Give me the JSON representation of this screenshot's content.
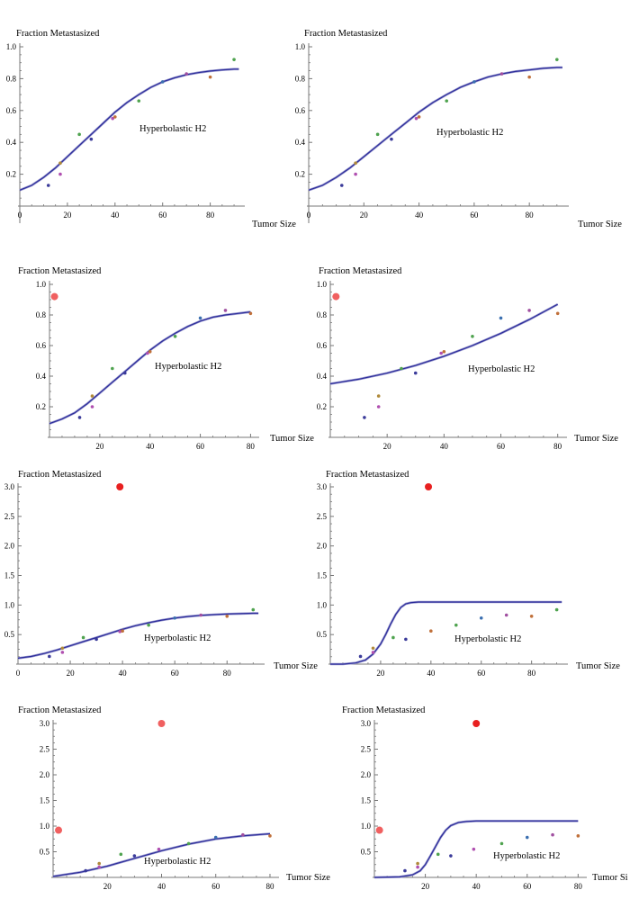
{
  "chart_data": [
    {
      "type": "line",
      "ylabel": "Fraction  Metastasized",
      "xlabel": "Tumor Size",
      "annotation": "Hyperbolastic H2",
      "xlim": [
        0,
        93
      ],
      "ylim": [
        0.0,
        1.0
      ],
      "xticks": [
        0,
        20,
        40,
        60,
        80
      ],
      "yticks": [
        0.2,
        0.4,
        0.6,
        0.8,
        1.0
      ],
      "yticks_text": [
        "0.2",
        "0.4",
        "0.6",
        "0.8",
        "1.0"
      ],
      "fit": {
        "x": [
          0,
          5,
          10,
          15,
          20,
          25,
          30,
          35,
          40,
          45,
          50,
          55,
          60,
          65,
          70,
          75,
          80,
          85,
          90,
          92
        ],
        "y": [
          0.1,
          0.13,
          0.18,
          0.24,
          0.31,
          0.38,
          0.45,
          0.52,
          0.59,
          0.65,
          0.7,
          0.745,
          0.78,
          0.805,
          0.825,
          0.838,
          0.848,
          0.855,
          0.86,
          0.86
        ]
      },
      "points": [
        {
          "x": 12,
          "y": 0.13,
          "color": "#3b3b9a"
        },
        {
          "x": 17,
          "y": 0.2,
          "color": "#b04fb0"
        },
        {
          "x": 17,
          "y": 0.27,
          "color": "#b08a3a"
        },
        {
          "x": 25,
          "y": 0.45,
          "color": "#4fa34f"
        },
        {
          "x": 30,
          "y": 0.42,
          "color": "#3b3b9a"
        },
        {
          "x": 39,
          "y": 0.55,
          "color": "#b04fb0"
        },
        {
          "x": 40,
          "y": 0.56,
          "color": "#c0703a"
        },
        {
          "x": 50,
          "y": 0.66,
          "color": "#4fa34f"
        },
        {
          "x": 60,
          "y": 0.78,
          "color": "#3b6fb0"
        },
        {
          "x": 70,
          "y": 0.83,
          "color": "#a04fa0"
        },
        {
          "x": 80,
          "y": 0.81,
          "color": "#c0703a"
        },
        {
          "x": 90,
          "y": 0.92,
          "color": "#4fa34f"
        }
      ]
    },
    {
      "type": "line",
      "ylabel": "Fraction  Metastasized",
      "xlabel": "Tumor Size",
      "annotation": "Hyperbolastic H2",
      "xlim": [
        0,
        93
      ],
      "ylim": [
        0.0,
        1.0
      ],
      "xticks": [
        0,
        20,
        40,
        60,
        80
      ],
      "yticks": [
        0.2,
        0.4,
        0.6,
        0.8,
        1.0
      ],
      "yticks_text": [
        "0.2",
        "0.4",
        "0.6",
        "0.8",
        "1.0"
      ],
      "fit": {
        "x": [
          0,
          5,
          10,
          15,
          20,
          25,
          30,
          35,
          40,
          45,
          50,
          55,
          60,
          65,
          70,
          75,
          80,
          85,
          90,
          92
        ],
        "y": [
          0.1,
          0.13,
          0.18,
          0.24,
          0.31,
          0.38,
          0.45,
          0.52,
          0.59,
          0.65,
          0.7,
          0.745,
          0.78,
          0.81,
          0.83,
          0.845,
          0.855,
          0.865,
          0.87,
          0.87
        ]
      },
      "points": [
        {
          "x": 12,
          "y": 0.13,
          "color": "#3b3b9a"
        },
        {
          "x": 17,
          "y": 0.2,
          "color": "#b04fb0"
        },
        {
          "x": 17,
          "y": 0.27,
          "color": "#b08a3a"
        },
        {
          "x": 25,
          "y": 0.45,
          "color": "#4fa34f"
        },
        {
          "x": 30,
          "y": 0.42,
          "color": "#3b3b9a"
        },
        {
          "x": 39,
          "y": 0.55,
          "color": "#b04fb0"
        },
        {
          "x": 40,
          "y": 0.56,
          "color": "#c0703a"
        },
        {
          "x": 50,
          "y": 0.66,
          "color": "#4fa34f"
        },
        {
          "x": 60,
          "y": 0.78,
          "color": "#3b6fb0"
        },
        {
          "x": 70,
          "y": 0.83,
          "color": "#a04fa0"
        },
        {
          "x": 80,
          "y": 0.81,
          "color": "#c0703a"
        },
        {
          "x": 90,
          "y": 0.92,
          "color": "#4fa34f"
        }
      ]
    },
    {
      "type": "line",
      "ylabel": "Fraction  Metastasized",
      "xlabel": "Tumor Size",
      "annotation": "Hyperbolastic H2",
      "xlim": [
        0,
        82
      ],
      "ylim": [
        0.0,
        1.0
      ],
      "xticks": [
        20,
        40,
        60,
        80
      ],
      "yticks": [
        0.2,
        0.4,
        0.6,
        0.8,
        1.0
      ],
      "yticks_text": [
        "0.2",
        "0.4",
        "0.6",
        "0.8",
        "1.0"
      ],
      "fit": {
        "x": [
          0,
          5,
          10,
          15,
          20,
          25,
          30,
          35,
          40,
          45,
          50,
          55,
          60,
          65,
          70,
          75,
          80
        ],
        "y": [
          0.09,
          0.12,
          0.16,
          0.22,
          0.29,
          0.36,
          0.43,
          0.5,
          0.57,
          0.63,
          0.68,
          0.725,
          0.76,
          0.785,
          0.8,
          0.81,
          0.82
        ]
      },
      "points": [
        {
          "x": 2,
          "y": 0.92,
          "color": "#f06060",
          "big": true
        },
        {
          "x": 12,
          "y": 0.13,
          "color": "#3b3b9a"
        },
        {
          "x": 17,
          "y": 0.2,
          "color": "#b04fb0"
        },
        {
          "x": 17,
          "y": 0.27,
          "color": "#b08a3a"
        },
        {
          "x": 25,
          "y": 0.45,
          "color": "#4fa34f"
        },
        {
          "x": 30,
          "y": 0.42,
          "color": "#3b3b9a"
        },
        {
          "x": 39,
          "y": 0.55,
          "color": "#b04fb0"
        },
        {
          "x": 40,
          "y": 0.56,
          "color": "#c0703a"
        },
        {
          "x": 50,
          "y": 0.66,
          "color": "#4fa34f"
        },
        {
          "x": 60,
          "y": 0.78,
          "color": "#3b6fb0"
        },
        {
          "x": 70,
          "y": 0.83,
          "color": "#a04fa0"
        },
        {
          "x": 80,
          "y": 0.81,
          "color": "#c0703a"
        }
      ]
    },
    {
      "type": "line",
      "ylabel": "Fraction Metastasized",
      "xlabel": "Tumor Size",
      "annotation": "Hyperbolastic H2",
      "xlim": [
        0,
        82
      ],
      "ylim": [
        0.0,
        1.0
      ],
      "xticks": [
        20,
        40,
        60,
        80
      ],
      "yticks": [
        0.2,
        0.4,
        0.6,
        0.8,
        1.0
      ],
      "yticks_text": [
        "0.2",
        "0.4",
        "0.6",
        "0.8",
        "1.0"
      ],
      "fit": {
        "x": [
          0,
          10,
          20,
          30,
          40,
          50,
          60,
          70,
          80
        ],
        "y": [
          0.35,
          0.38,
          0.42,
          0.47,
          0.53,
          0.6,
          0.68,
          0.77,
          0.87
        ]
      },
      "points": [
        {
          "x": 2,
          "y": 0.92,
          "color": "#f06060",
          "big": true
        },
        {
          "x": 12,
          "y": 0.13,
          "color": "#3b3b9a"
        },
        {
          "x": 17,
          "y": 0.2,
          "color": "#b04fb0"
        },
        {
          "x": 17,
          "y": 0.27,
          "color": "#b08a3a"
        },
        {
          "x": 25,
          "y": 0.45,
          "color": "#4fa34f"
        },
        {
          "x": 30,
          "y": 0.42,
          "color": "#3b3b9a"
        },
        {
          "x": 39,
          "y": 0.55,
          "color": "#b04fb0"
        },
        {
          "x": 40,
          "y": 0.56,
          "color": "#c0703a"
        },
        {
          "x": 50,
          "y": 0.66,
          "color": "#4fa34f"
        },
        {
          "x": 60,
          "y": 0.78,
          "color": "#3b6fb0"
        },
        {
          "x": 70,
          "y": 0.83,
          "color": "#a04fa0"
        },
        {
          "x": 80,
          "y": 0.81,
          "color": "#c0703a"
        }
      ]
    },
    {
      "type": "line",
      "ylabel": "Fraction  Metastasized",
      "xlabel": "Tumor Size",
      "annotation": "Hyperbolastic H2",
      "xlim": [
        0,
        93
      ],
      "ylim": [
        0.0,
        3.0
      ],
      "xticks": [
        0,
        20,
        40,
        60,
        80
      ],
      "yticks": [
        0.5,
        1.0,
        1.5,
        2.0,
        2.5,
        3.0
      ],
      "yticks_text": [
        "0.5",
        "1.0",
        "1.5",
        "2.0",
        "2.5",
        "3.0"
      ],
      "fit": {
        "x": [
          0,
          5,
          10,
          15,
          20,
          25,
          30,
          35,
          40,
          45,
          50,
          55,
          60,
          65,
          70,
          75,
          80,
          85,
          90,
          92
        ],
        "y": [
          0.1,
          0.13,
          0.18,
          0.24,
          0.31,
          0.38,
          0.45,
          0.52,
          0.59,
          0.65,
          0.7,
          0.745,
          0.78,
          0.805,
          0.825,
          0.838,
          0.848,
          0.855,
          0.86,
          0.86
        ]
      },
      "points": [
        {
          "x": 39,
          "y": 3.0,
          "color": "#e82020",
          "big": true
        },
        {
          "x": 12,
          "y": 0.13,
          "color": "#3b3b9a"
        },
        {
          "x": 17,
          "y": 0.2,
          "color": "#b04fb0"
        },
        {
          "x": 17,
          "y": 0.27,
          "color": "#b08a3a"
        },
        {
          "x": 25,
          "y": 0.45,
          "color": "#4fa34f"
        },
        {
          "x": 30,
          "y": 0.42,
          "color": "#3b3b9a"
        },
        {
          "x": 39,
          "y": 0.55,
          "color": "#b04fb0"
        },
        {
          "x": 40,
          "y": 0.56,
          "color": "#c0703a"
        },
        {
          "x": 50,
          "y": 0.66,
          "color": "#4fa34f"
        },
        {
          "x": 60,
          "y": 0.78,
          "color": "#3b6fb0"
        },
        {
          "x": 70,
          "y": 0.83,
          "color": "#a04fa0"
        },
        {
          "x": 80,
          "y": 0.81,
          "color": "#c0703a"
        },
        {
          "x": 90,
          "y": 0.92,
          "color": "#4fa34f"
        }
      ]
    },
    {
      "type": "line",
      "ylabel": "Fraction  Metastasized",
      "xlabel": "Tumor Size",
      "annotation": "Hyperbolastic H2",
      "xlim": [
        0,
        93
      ],
      "ylim": [
        0.0,
        3.0
      ],
      "xticks": [
        20,
        40,
        60,
        80
      ],
      "yticks": [
        0.5,
        1.0,
        1.5,
        2.0,
        2.5,
        3.0
      ],
      "yticks_text": [
        "0.5",
        "1.0",
        "1.5",
        "2.0",
        "2.5",
        "3.0"
      ],
      "fit": {
        "x": [
          0,
          5,
          10,
          14,
          17,
          20,
          22,
          24,
          26,
          28,
          30,
          32,
          35,
          40,
          50,
          60,
          70,
          80,
          92
        ],
        "y": [
          0.0,
          0.0,
          0.02,
          0.07,
          0.17,
          0.34,
          0.5,
          0.68,
          0.84,
          0.96,
          1.02,
          1.04,
          1.05,
          1.05,
          1.05,
          1.05,
          1.05,
          1.05,
          1.05
        ]
      },
      "points": [
        {
          "x": 39,
          "y": 3.0,
          "color": "#e82020",
          "big": true
        },
        {
          "x": 12,
          "y": 0.13,
          "color": "#3b3b9a"
        },
        {
          "x": 17,
          "y": 0.2,
          "color": "#b04fb0"
        },
        {
          "x": 17,
          "y": 0.27,
          "color": "#b08a3a"
        },
        {
          "x": 25,
          "y": 0.45,
          "color": "#4fa34f"
        },
        {
          "x": 30,
          "y": 0.42,
          "color": "#3b3b9a"
        },
        {
          "x": 40,
          "y": 0.56,
          "color": "#c0703a"
        },
        {
          "x": 50,
          "y": 0.66,
          "color": "#4fa34f"
        },
        {
          "x": 60,
          "y": 0.78,
          "color": "#3b6fb0"
        },
        {
          "x": 70,
          "y": 0.83,
          "color": "#a04fa0"
        },
        {
          "x": 80,
          "y": 0.81,
          "color": "#c0703a"
        },
        {
          "x": 90,
          "y": 0.92,
          "color": "#4fa34f"
        }
      ]
    },
    {
      "type": "line",
      "ylabel": "Fraction  Metastasized",
      "xlabel": "Tumor Size",
      "annotation": "Hyperbolastic H2",
      "xlim": [
        0,
        82
      ],
      "ylim": [
        0.0,
        3.0
      ],
      "xticks": [
        20,
        40,
        60,
        80
      ],
      "yticks": [
        0.5,
        1.0,
        1.5,
        2.0,
        2.5,
        3.0
      ],
      "yticks_text": [
        "0.5",
        "1.0",
        "1.5",
        "2.0",
        "2.5",
        "3.0"
      ],
      "fit": {
        "x": [
          0,
          10,
          20,
          30,
          40,
          50,
          60,
          70,
          80
        ],
        "y": [
          0.02,
          0.1,
          0.22,
          0.37,
          0.52,
          0.65,
          0.75,
          0.81,
          0.85
        ]
      },
      "points": [
        {
          "x": 40,
          "y": 3.0,
          "color": "#f06060",
          "big": true
        },
        {
          "x": 2,
          "y": 0.92,
          "color": "#f06060",
          "big": true
        },
        {
          "x": 12,
          "y": 0.13,
          "color": "#3b3b9a"
        },
        {
          "x": 17,
          "y": 0.2,
          "color": "#b04fb0"
        },
        {
          "x": 17,
          "y": 0.27,
          "color": "#b08a3a"
        },
        {
          "x": 25,
          "y": 0.45,
          "color": "#4fa34f"
        },
        {
          "x": 30,
          "y": 0.42,
          "color": "#3b3b9a"
        },
        {
          "x": 39,
          "y": 0.55,
          "color": "#b04fb0"
        },
        {
          "x": 50,
          "y": 0.66,
          "color": "#4fa34f"
        },
        {
          "x": 60,
          "y": 0.78,
          "color": "#3b6fb0"
        },
        {
          "x": 70,
          "y": 0.83,
          "color": "#a04fa0"
        },
        {
          "x": 80,
          "y": 0.81,
          "color": "#c0703a"
        }
      ]
    },
    {
      "type": "line",
      "ylabel": "Fraction  Metastasized",
      "xlabel": "Tumor Si",
      "annotation": "Hyperbolastic H2",
      "xlim": [
        0,
        82
      ],
      "ylim": [
        0.0,
        3.0
      ],
      "xticks": [
        20,
        40,
        60,
        80
      ],
      "yticks": [
        0.5,
        1.0,
        1.5,
        2.0,
        2.5,
        3.0
      ],
      "yticks_text": [
        "0.5",
        "1.0",
        "1.5",
        "2.0",
        "2.5",
        "3.0"
      ],
      "fit": {
        "x": [
          0,
          10,
          15,
          18,
          20,
          22,
          24,
          26,
          28,
          30,
          33,
          36,
          40,
          50,
          60,
          70,
          80
        ],
        "y": [
          0.0,
          0.01,
          0.05,
          0.13,
          0.25,
          0.42,
          0.6,
          0.78,
          0.92,
          1.01,
          1.07,
          1.09,
          1.1,
          1.1,
          1.1,
          1.1,
          1.1
        ]
      },
      "points": [
        {
          "x": 40,
          "y": 3.0,
          "color": "#e82020",
          "big": true
        },
        {
          "x": 2,
          "y": 0.92,
          "color": "#f06060",
          "big": true
        },
        {
          "x": 12,
          "y": 0.13,
          "color": "#3b3b9a"
        },
        {
          "x": 17,
          "y": 0.2,
          "color": "#b04fb0"
        },
        {
          "x": 17,
          "y": 0.27,
          "color": "#b08a3a"
        },
        {
          "x": 25,
          "y": 0.45,
          "color": "#4fa34f"
        },
        {
          "x": 30,
          "y": 0.42,
          "color": "#3b3b9a"
        },
        {
          "x": 39,
          "y": 0.55,
          "color": "#b04fb0"
        },
        {
          "x": 50,
          "y": 0.66,
          "color": "#4fa34f"
        },
        {
          "x": 60,
          "y": 0.78,
          "color": "#3b6fb0"
        },
        {
          "x": 70,
          "y": 0.83,
          "color": "#a04fa0"
        },
        {
          "x": 80,
          "y": 0.81,
          "color": "#c0703a"
        }
      ]
    }
  ],
  "colors": {
    "curve": "#2b2b9a",
    "curve_shadow": "#9a9acf",
    "axis": "#777777",
    "text": "#000000"
  }
}
